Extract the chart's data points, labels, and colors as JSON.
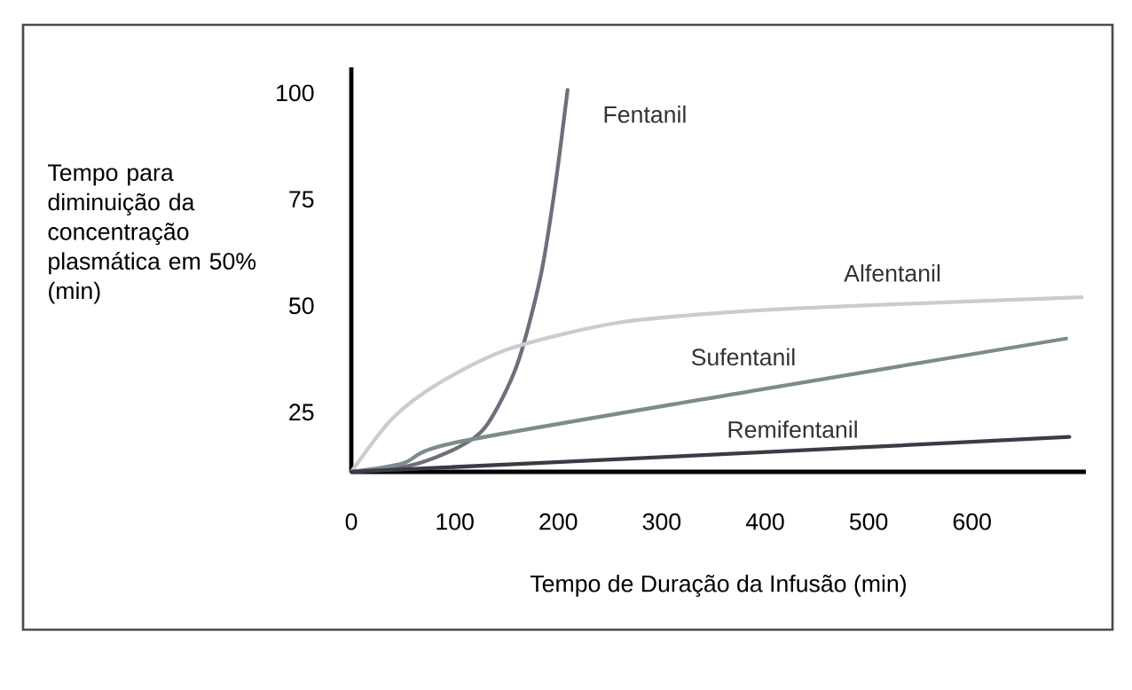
{
  "chart_data": {
    "type": "line",
    "xlabel": "Tempo de Duração da Infusão (min)",
    "ylabel": "Tempo para diminuição da concentração plasmática em 50% (min)",
    "xlim": [
      0,
      710
    ],
    "ylim": [
      11,
      106
    ],
    "xticks": [
      0,
      100,
      200,
      300,
      400,
      500,
      600
    ],
    "yticks": [
      25,
      50,
      75,
      100
    ],
    "grid": false,
    "legend": false,
    "marker": "none",
    "line_style": "solid",
    "series": [
      {
        "name": "Fentanil",
        "color": "#6e6f7a",
        "x": [
          0,
          57,
          103,
          131,
          160,
          183,
          197,
          209
        ],
        "values": [
          11,
          12.5,
          16.7,
          22,
          36,
          57,
          78,
          100.7
        ]
      },
      {
        "name": "Alfentanil",
        "color": "#c9cdcd",
        "x": [
          0,
          40,
          86,
          154,
          257,
          371,
          486,
          706
        ],
        "values": [
          11,
          23.6,
          32,
          40,
          46,
          48.6,
          50,
          52
        ]
      },
      {
        "name": "Sufentanil",
        "color": "#7d8c8a",
        "x": [
          0,
          50,
          103,
          400,
          691
        ],
        "values": [
          11,
          13,
          18,
          30.5,
          42.3
        ]
      },
      {
        "name": "Remifentanil",
        "color": "#3a3b45",
        "x": [
          0,
          314,
          694
        ],
        "values": [
          11,
          14.6,
          19.2
        ]
      }
    ]
  }
}
